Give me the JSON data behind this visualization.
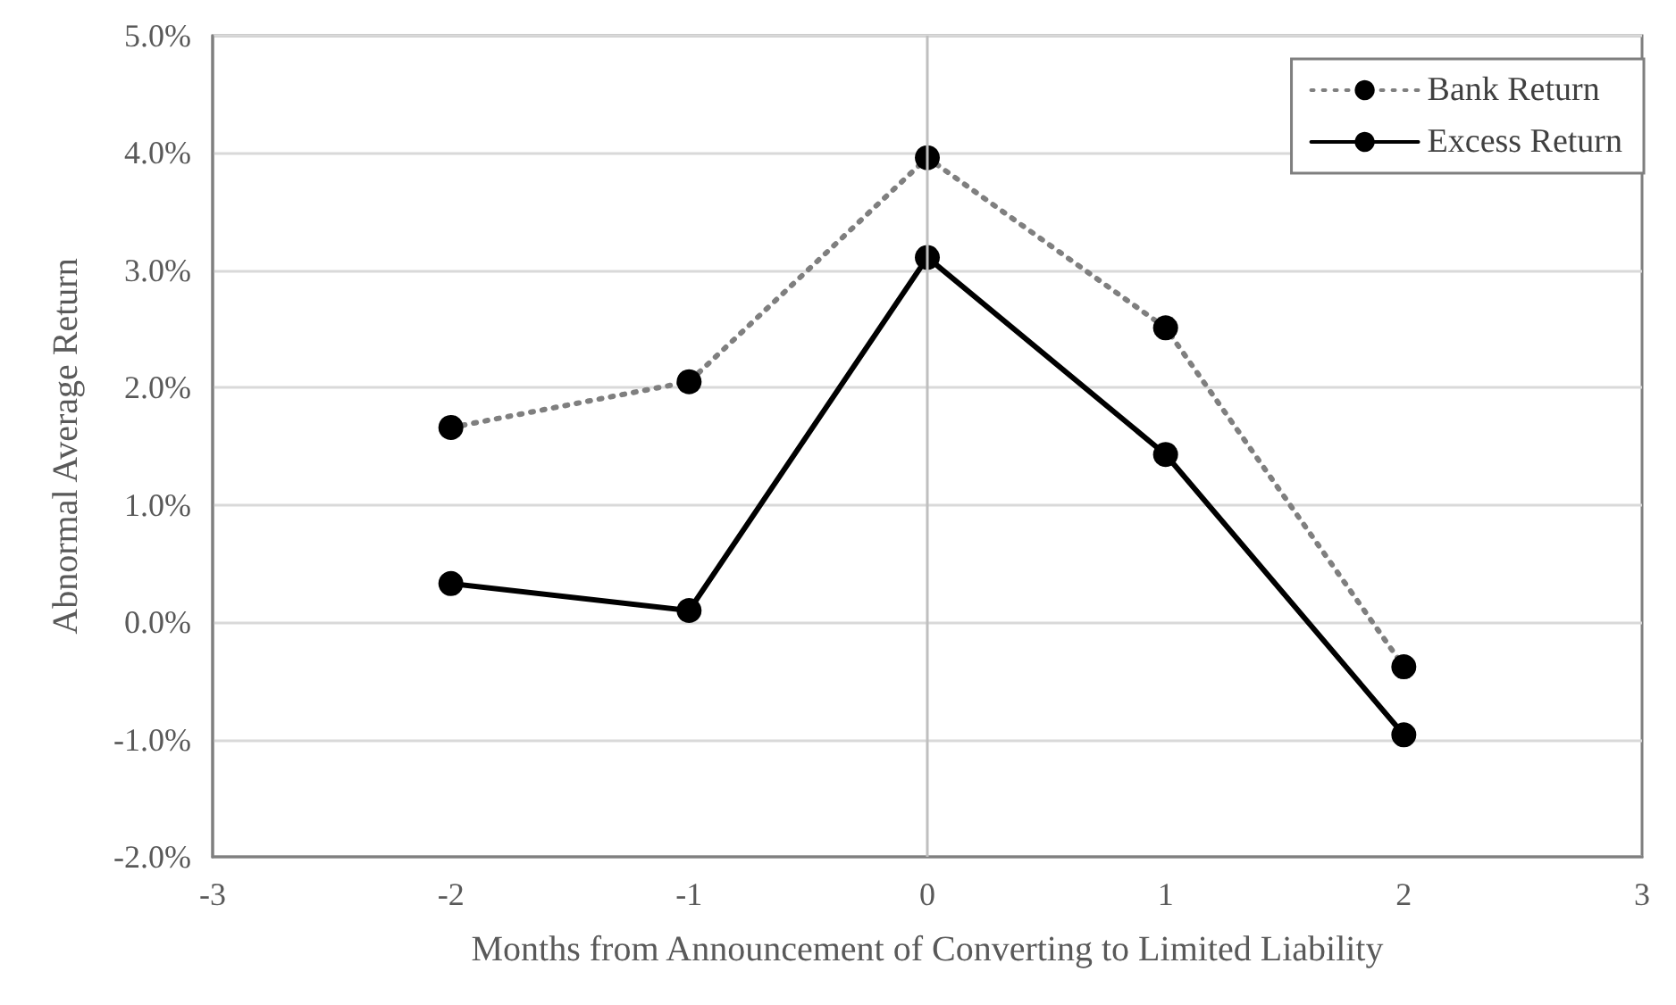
{
  "chart_data": {
    "type": "line",
    "xlabel": "Months from Announcement of Converting to Limited Liability",
    "ylabel": "Abnormal Average Return",
    "x": [
      -2,
      -1,
      0,
      1,
      2
    ],
    "series": [
      {
        "name": "Bank Return",
        "color": "#7f7f7f",
        "line_style": "dotted",
        "values": [
          1.66,
          2.05,
          3.96,
          2.51,
          -0.38
        ]
      },
      {
        "name": "Excess Return",
        "color": "#000000",
        "line_style": "solid",
        "values": [
          0.33,
          0.1,
          3.11,
          1.43,
          -0.96
        ]
      }
    ],
    "xlim": [
      -3,
      3
    ],
    "xticks": [
      -3,
      -2,
      -1,
      0,
      1,
      2,
      3
    ],
    "ylim": [
      -2,
      5
    ],
    "yticks": [
      {
        "value": -2,
        "label": "-2.0%"
      },
      {
        "value": -1,
        "label": "-1.0%"
      },
      {
        "value": 0,
        "label": "0.0%"
      },
      {
        "value": 1,
        "label": "1.0%"
      },
      {
        "value": 2,
        "label": "2.0%"
      },
      {
        "value": 3,
        "label": "3.0%"
      },
      {
        "value": 4,
        "label": "4.0%"
      },
      {
        "value": 5,
        "label": "5.0%"
      }
    ],
    "ref_lines": [
      {
        "axis": "x",
        "value": 0,
        "color": "#bfbfbf"
      }
    ],
    "grid": "y",
    "legend": "top right",
    "marker": "circle"
  }
}
